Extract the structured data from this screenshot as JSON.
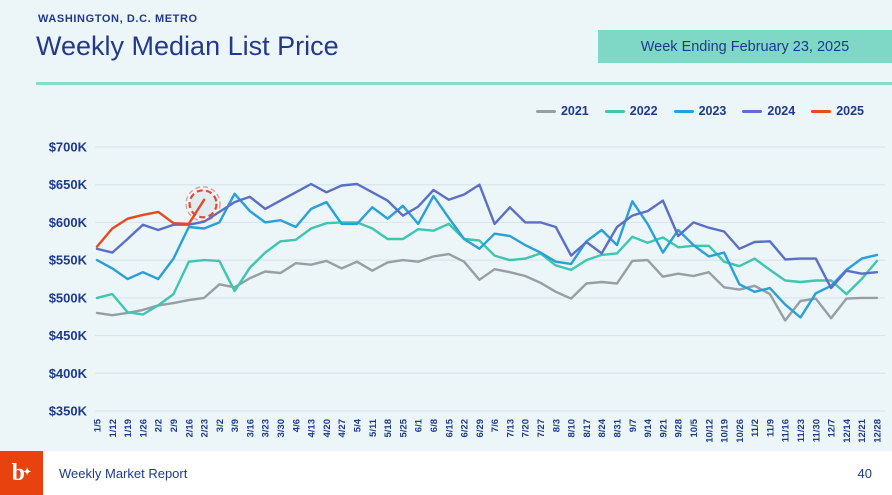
{
  "header": {
    "eyebrow": "WASHINGTON, D.C. METRO",
    "title": "Weekly Median List Price",
    "badge": "Week Ending February 23, 2025"
  },
  "footer": {
    "logo_text": "b",
    "report_name": "Weekly Market Report",
    "page_number": "40"
  },
  "colors": {
    "background": "#ecf5f8",
    "navy_text": "#1d3a8f",
    "teal_accent": "#7fd8c6",
    "grid": "#d9e6ec",
    "logo_orange": "#e8430f",
    "annotation": "#e0492c"
  },
  "chart_data": {
    "type": "line",
    "title": "Weekly Median List Price",
    "xlabel": "",
    "ylabel": "",
    "ylim": [
      350,
      700
    ],
    "y_tick_step": 50,
    "y_tick_labels": [
      "$350K",
      "$400K",
      "$450K",
      "$500K",
      "$550K",
      "$600K",
      "$650K",
      "$700K"
    ],
    "grid": "horizontal",
    "legend_position": "top-right",
    "units": "thousand USD",
    "categories": [
      "1/5",
      "1/12",
      "1/19",
      "1/26",
      "2/2",
      "2/9",
      "2/16",
      "2/23",
      "3/2",
      "3/9",
      "3/16",
      "3/23",
      "3/30",
      "4/6",
      "4/13",
      "4/20",
      "4/27",
      "5/4",
      "5/11",
      "5/18",
      "5/25",
      "6/1",
      "6/8",
      "6/15",
      "6/22",
      "6/29",
      "7/6",
      "7/13",
      "7/20",
      "7/27",
      "8/3",
      "8/10",
      "8/17",
      "8/24",
      "8/31",
      "9/7",
      "9/14",
      "9/21",
      "9/28",
      "10/5",
      "10/12",
      "10/19",
      "10/26",
      "11/2",
      "11/9",
      "11/16",
      "11/23",
      "11/30",
      "12/7",
      "12/14",
      "12/21",
      "12/28"
    ],
    "series": [
      {
        "name": "2021",
        "color": "#999fa0",
        "color_hex": "#979ea5",
        "values": [
          480,
          477,
          480,
          484,
          490,
          493,
          497,
          500,
          518,
          514,
          526,
          535,
          533,
          546,
          544,
          549,
          539,
          548,
          536,
          547,
          550,
          548,
          555,
          558,
          548,
          524,
          538,
          534,
          529,
          520,
          508,
          499,
          519,
          521,
          519,
          549,
          550,
          528,
          532,
          529,
          534,
          514,
          511,
          516,
          505,
          470,
          496,
          499,
          473,
          499,
          500,
          500
        ]
      },
      {
        "name": "2022",
        "color_hex": "#3ec6ae",
        "values": [
          500,
          505,
          481,
          478,
          490,
          505,
          548,
          550,
          549,
          509,
          540,
          560,
          575,
          577,
          592,
          599,
          600,
          600,
          592,
          578,
          578,
          591,
          589,
          598,
          578,
          576,
          556,
          550,
          552,
          559,
          543,
          537,
          550,
          557,
          559,
          581,
          573,
          580,
          567,
          569,
          569,
          548,
          542,
          552,
          537,
          523,
          521,
          523,
          523,
          505,
          525,
          549
        ]
      },
      {
        "name": "2023",
        "color_hex": "#29a0d8",
        "values": [
          550,
          539,
          525,
          534,
          525,
          552,
          594,
          592,
          600,
          638,
          615,
          600,
          603,
          594,
          618,
          627,
          598,
          598,
          620,
          605,
          622,
          598,
          635,
          606,
          578,
          565,
          585,
          582,
          570,
          560,
          548,
          545,
          575,
          590,
          570,
          628,
          598,
          560,
          590,
          570,
          555,
          560,
          518,
          508,
          513,
          491,
          474,
          506,
          516,
          537,
          552,
          557
        ]
      },
      {
        "name": "2024",
        "color_hex": "#5b6fc9",
        "values": [
          565,
          560,
          578,
          597,
          590,
          597,
          597,
          601,
          614,
          627,
          634,
          618,
          629,
          640,
          651,
          640,
          649,
          651,
          640,
          629,
          609,
          621,
          643,
          630,
          637,
          650,
          598,
          620,
          600,
          600,
          594,
          556,
          574,
          559,
          594,
          609,
          615,
          629,
          582,
          600,
          593,
          588,
          565,
          574,
          575,
          551,
          552,
          552,
          513,
          536,
          532,
          534
        ]
      },
      {
        "name": "2025",
        "color_hex": "#e8491f",
        "values": [
          568,
          592,
          605,
          610,
          614,
          599,
          598,
          630,
          null,
          null,
          null,
          null,
          null,
          null,
          null,
          null,
          null,
          null,
          null,
          null,
          null,
          null,
          null,
          null,
          null,
          null,
          null,
          null,
          null,
          null,
          null,
          null,
          null,
          null,
          null,
          null,
          null,
          null,
          null,
          null,
          null,
          null,
          null,
          null,
          null,
          null,
          null,
          null,
          null,
          null,
          null,
          null
        ]
      }
    ],
    "annotation": {
      "type": "dashed-circle",
      "series": "2025",
      "point_label": "2/23",
      "point_index": 7,
      "value": 630,
      "color": "#e0492c"
    }
  }
}
